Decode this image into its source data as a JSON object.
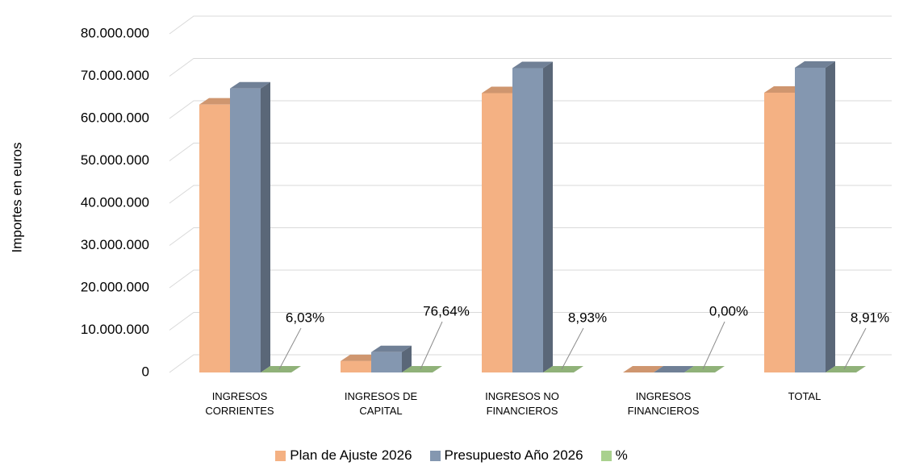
{
  "chart_data": {
    "type": "bar3d",
    "y_axis_label": "Importes en euros",
    "categories": [
      "INGRESOS CORRIENTES",
      "INGRESOS DE CAPITAL",
      "INGRESOS NO FINANCIEROS",
      "INGRESOS FINANCIEROS",
      "TOTAL"
    ],
    "series": [
      {
        "name": "Plan de Ajuste 2026",
        "color": "#f4b183",
        "values": [
          63300000,
          2700000,
          66000000,
          0,
          66100000
        ]
      },
      {
        "name": "Presupuesto Año 2026",
        "color": "#8497b0",
        "values": [
          67100000,
          4800000,
          71900000,
          0,
          72000000
        ]
      },
      {
        "name": "%",
        "color": "#a9d18e",
        "values": [
          6.03,
          76.64,
          8.93,
          0,
          8.91
        ],
        "value_labels": [
          "6,03%",
          "76,64%",
          "8,93%",
          "0,00%",
          "8,91%"
        ]
      }
    ],
    "ylim": [
      0,
      80000000
    ],
    "yticks": [
      0,
      {
        "value": 10000000,
        "label": "10.000.000"
      },
      {
        "value": 20000000,
        "label": "20.000.000"
      },
      {
        "value": 30000000,
        "label": "30.000.000"
      },
      {
        "value": 40000000,
        "label": "40.000.000"
      },
      {
        "value": 50000000,
        "label": "50.000.000"
      },
      {
        "value": 60000000,
        "label": "60.000.000"
      },
      {
        "value": 70000000,
        "label": "70.000.000"
      },
      {
        "value": 80000000,
        "label": "80.000.000"
      }
    ],
    "grid": true,
    "legend": "bottom"
  }
}
